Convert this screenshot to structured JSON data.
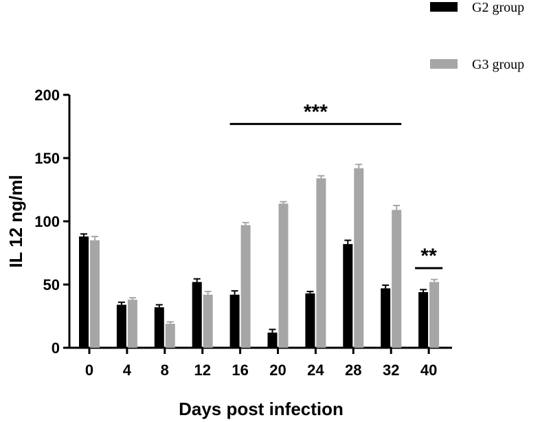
{
  "chart_data": {
    "type": "bar",
    "title": "",
    "xlabel": "Days post infection",
    "ylabel": "IL 12 ng/ml",
    "ylim": [
      0,
      200
    ],
    "yticks": [
      0,
      50,
      100,
      150,
      200
    ],
    "categories": [
      "0",
      "4",
      "8",
      "12",
      "16",
      "20",
      "24",
      "28",
      "32",
      "40"
    ],
    "series": [
      {
        "name": "G2 group",
        "color": "#000000",
        "values": [
          88,
          34,
          32,
          52,
          42,
          12,
          43,
          82,
          47,
          44
        ],
        "errors": [
          2,
          2,
          2,
          2.5,
          3,
          2.5,
          1.5,
          3,
          2.5,
          2
        ]
      },
      {
        "name": "G3 group",
        "color": "#a6a6a6",
        "values": [
          85,
          38,
          19,
          42,
          97,
          114,
          134,
          142,
          109,
          52
        ],
        "errors": [
          3,
          1.5,
          1.5,
          2.5,
          2,
          1.5,
          2,
          3,
          3.5,
          2
        ]
      }
    ],
    "legend_position": "top-right",
    "annotations": [
      {
        "text": "***",
        "from_category": "16",
        "to_category": "32",
        "y": 177
      },
      {
        "text": "**",
        "from_category": "40",
        "to_category": "40",
        "y": 63
      }
    ]
  }
}
